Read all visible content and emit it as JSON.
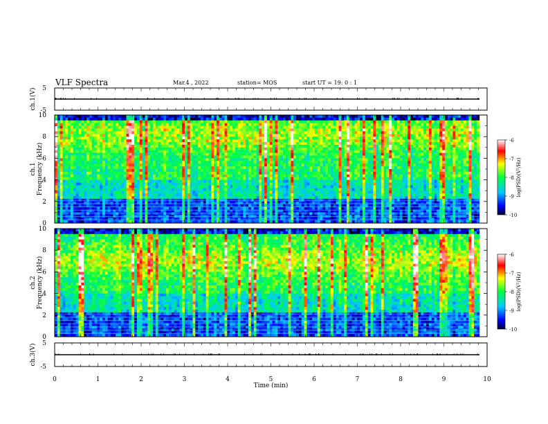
{
  "header": {
    "title": "VLF Spectra",
    "date": "Mar.4 , 2022",
    "station": "station= MOS",
    "start": "start UT = 19: 0 : 1"
  },
  "chart_data": [
    {
      "type": "line",
      "id": "ch1-waveform",
      "ylabel": "ch.1(V)",
      "ylim": [
        -5,
        5
      ],
      "yticks": [
        "5",
        "-5"
      ],
      "xlim": [
        0,
        10
      ],
      "series": [
        {
          "x": [
            0,
            9.82
          ],
          "y": [
            0,
            0
          ]
        }
      ]
    },
    {
      "type": "heatmap",
      "id": "ch1-spectrogram",
      "ylabel": "ch.1\nFrequency (kHz)",
      "ylim": [
        0,
        10
      ],
      "yticks": [
        "0",
        "2",
        "4",
        "6",
        "8",
        "10"
      ],
      "xlim": [
        0,
        10
      ],
      "data_xmax": 9.82,
      "colorbar": {
        "label": "log(PSD)(V²/Hz)",
        "ticks": [
          "-6",
          "-7",
          "-8",
          "-9",
          "-10"
        ],
        "range": [
          -10,
          -6
        ]
      },
      "hum_lines_khz": [
        0.3,
        0.6,
        0.9,
        1.2,
        1.5,
        1.8,
        2.1
      ]
    },
    {
      "type": "heatmap",
      "id": "ch2-spectrogram",
      "ylabel": "ch.2\nFrequency (kHz)",
      "ylim": [
        0,
        10
      ],
      "yticks": [
        "0",
        "2",
        "4",
        "6",
        "8",
        "10"
      ],
      "xlim": [
        0,
        10
      ],
      "data_xmax": 9.82,
      "colorbar": {
        "label": "log(PSD)(V²/Hz)",
        "ticks": [
          "-6",
          "-7",
          "-8",
          "-9",
          "-10"
        ],
        "range": [
          -10,
          -6
        ]
      },
      "hum_lines_khz": [
        0.3,
        0.6,
        0.9,
        1.2,
        1.5,
        1.8,
        2.1
      ]
    },
    {
      "type": "line",
      "id": "ch3-waveform",
      "ylabel": "ch.3(V)",
      "ylim": [
        -5,
        5
      ],
      "yticks": [
        "5",
        "-5"
      ],
      "xlim": [
        0,
        10
      ],
      "xlabel": "Time (min)",
      "xticks": [
        "0",
        "1",
        "2",
        "3",
        "4",
        "5",
        "6",
        "7",
        "8",
        "9",
        "10"
      ],
      "series": [
        {
          "x": [
            0,
            9.82
          ],
          "y": [
            0,
            0
          ]
        }
      ]
    }
  ]
}
